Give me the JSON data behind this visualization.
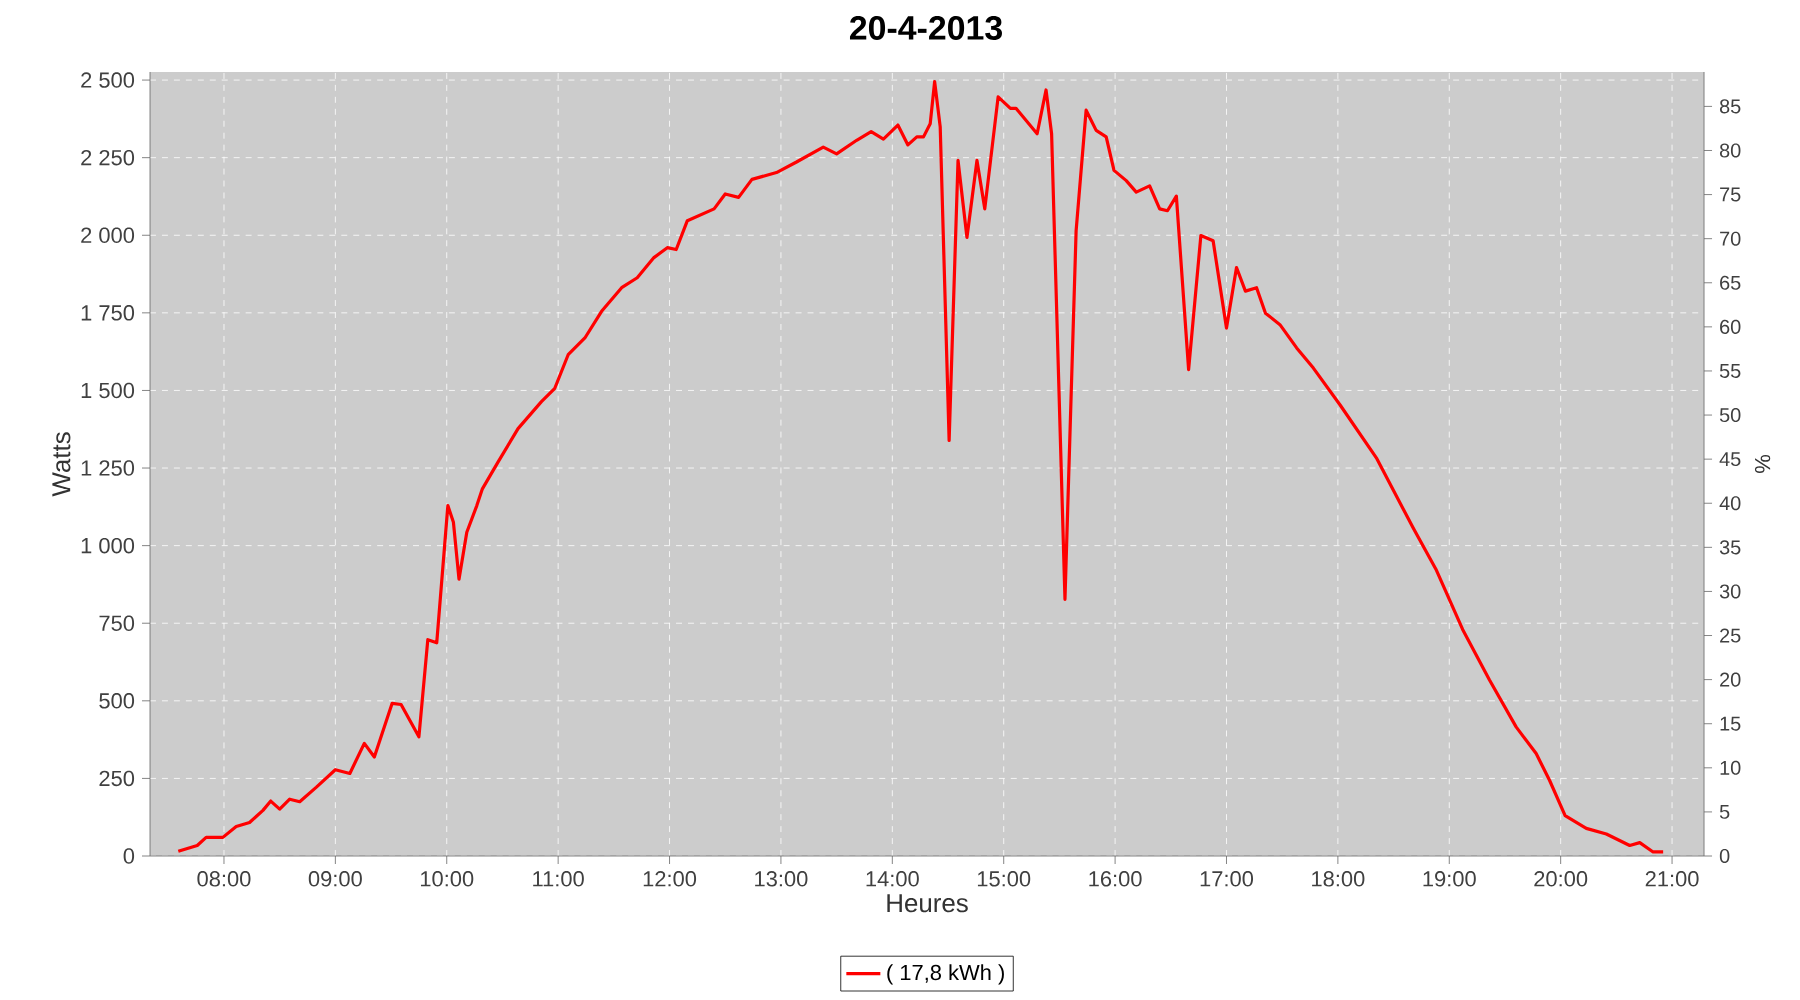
{
  "chart_data": {
    "type": "line",
    "title": "20-4-2013",
    "xlabel": "Heures",
    "ylabel": "Watts",
    "y2label": "%",
    "x": [
      7.59,
      7.76,
      7.84,
      7.99,
      8.11,
      8.23,
      8.35,
      8.42,
      8.5,
      8.59,
      8.68,
      8.83,
      9.0,
      9.13,
      9.26,
      9.35,
      9.51,
      9.59,
      9.75,
      9.83,
      9.91,
      10.01,
      10.06,
      10.11,
      10.18,
      10.27,
      10.32,
      10.46,
      10.64,
      10.85,
      10.97,
      11.09,
      11.24,
      11.39,
      11.57,
      11.71,
      11.86,
      11.98,
      12.06,
      12.16,
      12.4,
      12.5,
      12.62,
      12.74,
      12.96,
      13.14,
      13.38,
      13.5,
      13.68,
      13.81,
      13.92,
      14.05,
      14.14,
      14.22,
      14.28,
      14.34,
      14.38,
      14.43,
      14.51,
      14.59,
      14.67,
      14.76,
      14.83,
      14.95,
      15.06,
      15.11,
      15.3,
      15.38,
      15.43,
      15.55,
      15.65,
      15.74,
      15.83,
      15.92,
      15.99,
      16.1,
      16.19,
      16.31,
      16.4,
      16.47,
      16.55,
      16.66,
      16.77,
      16.88,
      17.0,
      17.09,
      17.17,
      17.27,
      17.35,
      17.48,
      17.63,
      17.78,
      18.02,
      18.35,
      18.68,
      18.88,
      19.12,
      19.36,
      19.6,
      19.78,
      19.9,
      20.04,
      20.23,
      20.41,
      20.62,
      20.71,
      20.83,
      20.92
    ],
    "series": [
      {
        "name": "( 17,8 kWh )",
        "color": "#ff0000",
        "values": [
          15,
          34,
          60,
          60,
          95,
          108,
          147,
          177,
          151,
          183,
          175,
          222,
          278,
          266,
          363,
          319,
          492,
          488,
          384,
          697,
          687,
          1129,
          1075,
          892,
          1043,
          1129,
          1183,
          1269,
          1377,
          1464,
          1507,
          1615,
          1669,
          1755,
          1831,
          1863,
          1928,
          1960,
          1954,
          2047,
          2085,
          2133,
          2122,
          2180,
          2202,
          2236,
          2284,
          2262,
          2306,
          2334,
          2310,
          2355,
          2291,
          2317,
          2317,
          2359,
          2495,
          2349,
          1339,
          2241,
          1993,
          2241,
          2085,
          2446,
          2409,
          2409,
          2327,
          2468,
          2327,
          827,
          2014,
          2403,
          2338,
          2317,
          2209,
          2176,
          2139,
          2159,
          2085,
          2079,
          2126,
          1567,
          1999,
          1982,
          1701,
          1896,
          1820,
          1831,
          1749,
          1712,
          1637,
          1572,
          1453,
          1280,
          1054,
          924,
          730,
          568,
          416,
          330,
          244,
          130,
          89,
          71,
          34,
          43,
          13,
          13
        ]
      }
    ],
    "xlim": [
      7.336,
      21.287
    ],
    "ylim": [
      0,
      2526
    ],
    "y2lim": [
      0,
      88.9
    ],
    "xticks": [
      {
        "value": 8,
        "label": "08:00"
      },
      {
        "value": 9,
        "label": "09:00"
      },
      {
        "value": 10,
        "label": "10:00"
      },
      {
        "value": 11,
        "label": "11:00"
      },
      {
        "value": 12,
        "label": "12:00"
      },
      {
        "value": 13,
        "label": "13:00"
      },
      {
        "value": 14,
        "label": "14:00"
      },
      {
        "value": 15,
        "label": "15:00"
      },
      {
        "value": 16,
        "label": "16:00"
      },
      {
        "value": 17,
        "label": "17:00"
      },
      {
        "value": 18,
        "label": "18:00"
      },
      {
        "value": 19,
        "label": "19:00"
      },
      {
        "value": 20,
        "label": "20:00"
      },
      {
        "value": 21,
        "label": "21:00"
      }
    ],
    "yticks": [
      0,
      250,
      500,
      750,
      {
        "value": 1000,
        "label": "1 000"
      },
      {
        "value": 1250,
        "label": "1 250"
      },
      {
        "value": 1500,
        "label": "1 500"
      },
      {
        "value": 1750,
        "label": "1 750"
      },
      {
        "value": 2000,
        "label": "2 000"
      },
      {
        "value": 2250,
        "label": "2 250"
      },
      {
        "value": 2500,
        "label": "2 500"
      }
    ],
    "y2ticks": [
      0,
      5,
      10,
      15,
      20,
      25,
      30,
      35,
      40,
      45,
      50,
      55,
      60,
      65,
      70,
      75,
      80,
      85
    ],
    "grid": true,
    "legend": "bottom"
  }
}
